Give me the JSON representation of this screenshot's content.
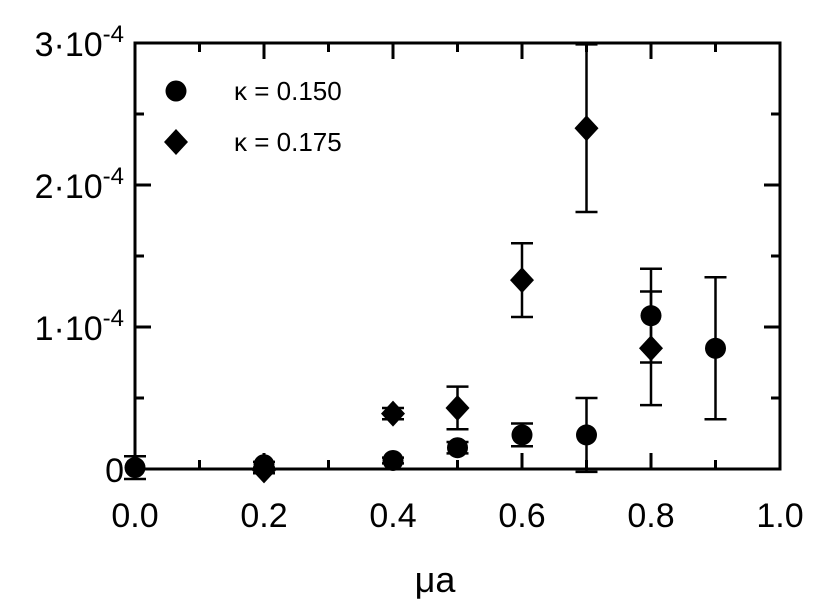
{
  "chart_data": {
    "type": "scatter",
    "title": "",
    "xlabel": "μa",
    "ylabel": "",
    "xlim": [
      0.0,
      1.0
    ],
    "ylim": [
      0,
      0.0003
    ],
    "x_ticks": [
      0.0,
      0.2,
      0.4,
      0.6,
      0.8,
      1.0
    ],
    "x_tick_labels": [
      "0.0",
      "0.2",
      "0.4",
      "0.6",
      "0.8",
      "1.0"
    ],
    "y_ticks": [
      0,
      0.0001,
      0.0002,
      0.0003
    ],
    "y_tick_labels": [
      {
        "base": "0",
        "exp": ""
      },
      {
        "base": "1·10",
        "exp": "-4"
      },
      {
        "base": "2·10",
        "exp": "-4"
      },
      {
        "base": "3·10",
        "exp": "-4"
      }
    ],
    "grid": false,
    "legend_position": "top-left",
    "series": [
      {
        "name": "κ = 0.150",
        "marker": "circle",
        "color": "#000000",
        "points": [
          {
            "x": 0.0,
            "y": 1e-06,
            "err": 8e-06
          },
          {
            "x": 0.2,
            "y": 3e-06,
            "err": 2e-06
          },
          {
            "x": 0.4,
            "y": 6e-06,
            "err": 2e-06
          },
          {
            "x": 0.5,
            "y": 1.5e-05,
            "err": 4e-06
          },
          {
            "x": 0.6,
            "y": 2.4e-05,
            "err": 8e-06
          },
          {
            "x": 0.7,
            "y": 2.4e-05,
            "err": 2.6e-05
          },
          {
            "x": 0.8,
            "y": 0.000108,
            "err": 3.3e-05
          },
          {
            "x": 0.9,
            "y": 8.5e-05,
            "err": 5e-05
          }
        ]
      },
      {
        "name": "κ = 0.175",
        "marker": "diamond",
        "color": "#000000",
        "points": [
          {
            "x": 0.2,
            "y": -1e-06,
            "err": 2e-06
          },
          {
            "x": 0.4,
            "y": 3.9e-05,
            "err": 4e-06
          },
          {
            "x": 0.5,
            "y": 4.3e-05,
            "err": 1.5e-05
          },
          {
            "x": 0.6,
            "y": 0.000133,
            "err": 2.6e-05
          },
          {
            "x": 0.7,
            "y": 0.00024,
            "err": 5.9e-05
          },
          {
            "x": 0.8,
            "y": 8.5e-05,
            "err": 4e-05
          }
        ]
      }
    ]
  }
}
